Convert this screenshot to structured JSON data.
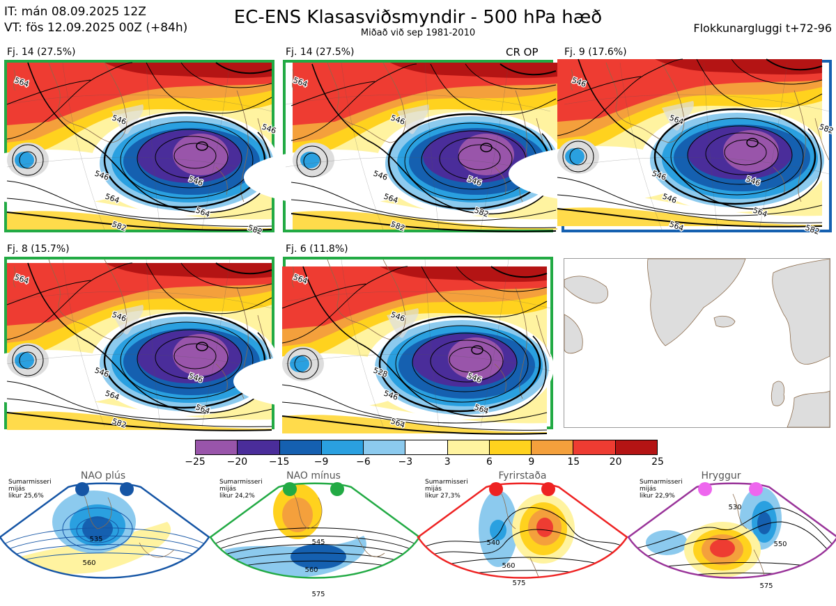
{
  "header": {
    "it_line": "IT: mán 08.09.2025 12Z",
    "vt_line": "VT: fös 12.09.2025 00Z  (+84h)",
    "title": "EC-ENS Klasasviðsmyndir - 500 hPa hæð",
    "subtitle": "Miðað við sep 1981-2010",
    "window": "Flokkunargluggi t+72-96"
  },
  "panels": [
    {
      "label": "Fj. 14 (27.5%)",
      "extra": "",
      "border_color": "#22aa44",
      "contours": [
        "564",
        "546",
        "546",
        "546",
        "564",
        "564",
        "582",
        "546",
        "582"
      ]
    },
    {
      "label": "Fj. 14 (27.5%)",
      "extra": "CR OP",
      "border_color": "#22aa44",
      "contours": [
        "564",
        "546",
        "546",
        "546",
        "564",
        "582",
        "582"
      ]
    },
    {
      "label": "Fj. 9 (17.6%)",
      "extra": "",
      "border_color": "#1560b0",
      "contours": [
        "546",
        "564",
        "546",
        "546",
        "546",
        "564",
        "564",
        "582",
        "582"
      ]
    },
    {
      "label": "Fj. 8 (15.7%)",
      "extra": "",
      "border_color": "#22aa44",
      "contours": [
        "564",
        "546",
        "546",
        "546",
        "564",
        "564",
        "582"
      ]
    },
    {
      "label": "Fj. 6 (11.8%)",
      "extra": "",
      "border_color": "#22aa44",
      "contours": [
        "564",
        "546",
        "528",
        "546",
        "546",
        "564",
        "564"
      ]
    }
  ],
  "colorbar": {
    "colors": [
      "#9955aa",
      "#4a2d9a",
      "#1560b0",
      "#2aa0e0",
      "#8ccaee",
      "#ffffff",
      "#fff3a0",
      "#ffd21e",
      "#f4a03c",
      "#ee3c32",
      "#b41414"
    ],
    "labels": [
      "−25",
      "−20",
      "−15",
      "−9",
      "−6",
      "−3",
      "3",
      "6",
      "9",
      "15",
      "20",
      "25"
    ]
  },
  "regimes": [
    {
      "title": "NAO plús",
      "note": [
        "Sumarmisseri",
        "mijás",
        "likur 25,6%"
      ],
      "color": "#1555a5",
      "contours": [
        "535",
        "560"
      ]
    },
    {
      "title": "NAO mínus",
      "note": [
        "Sumarmisseri",
        "mijás",
        "likur 24,2%"
      ],
      "color": "#22aa44",
      "contours": [
        "545",
        "560",
        "575"
      ]
    },
    {
      "title": "Fyrirstaða",
      "note": [
        "Sumarmisseri",
        "mijás",
        "likur 27,3%"
      ],
      "color": "#ee2222",
      "contours": [
        "540",
        "560",
        "575"
      ]
    },
    {
      "title": "Hryggur",
      "note": [
        "Sumarmisseri",
        "mijás",
        "likur 22,9%"
      ],
      "color": "#ee66ee",
      "contours": [
        "530",
        "550",
        "575"
      ]
    }
  ]
}
